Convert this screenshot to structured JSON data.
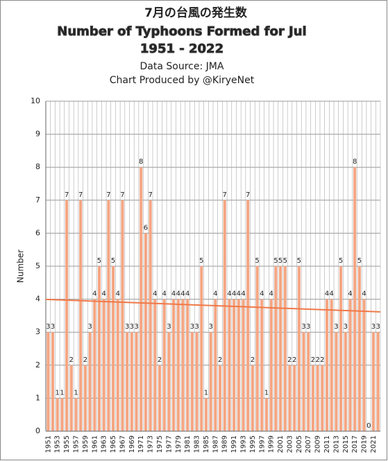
{
  "chart_data": {
    "type": "bar",
    "title": "7月の台風の発生数",
    "subtitle": "Number of Typhoons Formed for Jul",
    "period": "1951 - 2022",
    "source": "Data Source: JMA",
    "credit": "Chart Produced by @KiryeNet",
    "y_label": "Number",
    "categories": [
      "1951",
      null,
      "1953",
      null,
      "1955",
      null,
      "1957",
      null,
      "1959",
      null,
      "1961",
      null,
      "1963",
      null,
      "1965",
      null,
      "1967",
      null,
      "1969",
      null,
      "1971",
      null,
      "1973",
      null,
      "1975",
      null,
      "1977",
      null,
      "1979",
      null,
      "1981",
      null,
      "1983",
      null,
      "1985",
      null,
      "1987",
      null,
      "1989",
      null,
      "1991",
      null,
      "1993",
      null,
      "1995",
      null,
      "1997",
      null,
      "1999",
      null,
      "2001",
      null,
      "2003",
      null,
      "2005",
      null,
      "2007",
      null,
      "2009",
      null,
      "2011",
      null,
      "2013",
      null,
      "2015",
      null,
      "2017",
      null,
      "2019",
      null,
      "2021",
      null
    ],
    "values": [
      3,
      3,
      1,
      1,
      7,
      2,
      1,
      7,
      2,
      3,
      4,
      5,
      4,
      7,
      5,
      4,
      7,
      3,
      3,
      3,
      8,
      6,
      7,
      4,
      2,
      4,
      3,
      4,
      4,
      4,
      4,
      3,
      3,
      5,
      1,
      3,
      4,
      2,
      7,
      4,
      4,
      4,
      4,
      7,
      2,
      5,
      4,
      1,
      4,
      5,
      5,
      5,
      2,
      2,
      5,
      3,
      3,
      2,
      2,
      2,
      4,
      4,
      3,
      5,
      3,
      4,
      8,
      5,
      4,
      0,
      3,
      3
    ],
    "color": "#f4a582",
    "trend_color": "#f07848",
    "ylim": [
      0,
      10
    ],
    "yticks": [
      0,
      1,
      2,
      3,
      4,
      5,
      6,
      7,
      8,
      9,
      10
    ],
    "grid": true
  }
}
